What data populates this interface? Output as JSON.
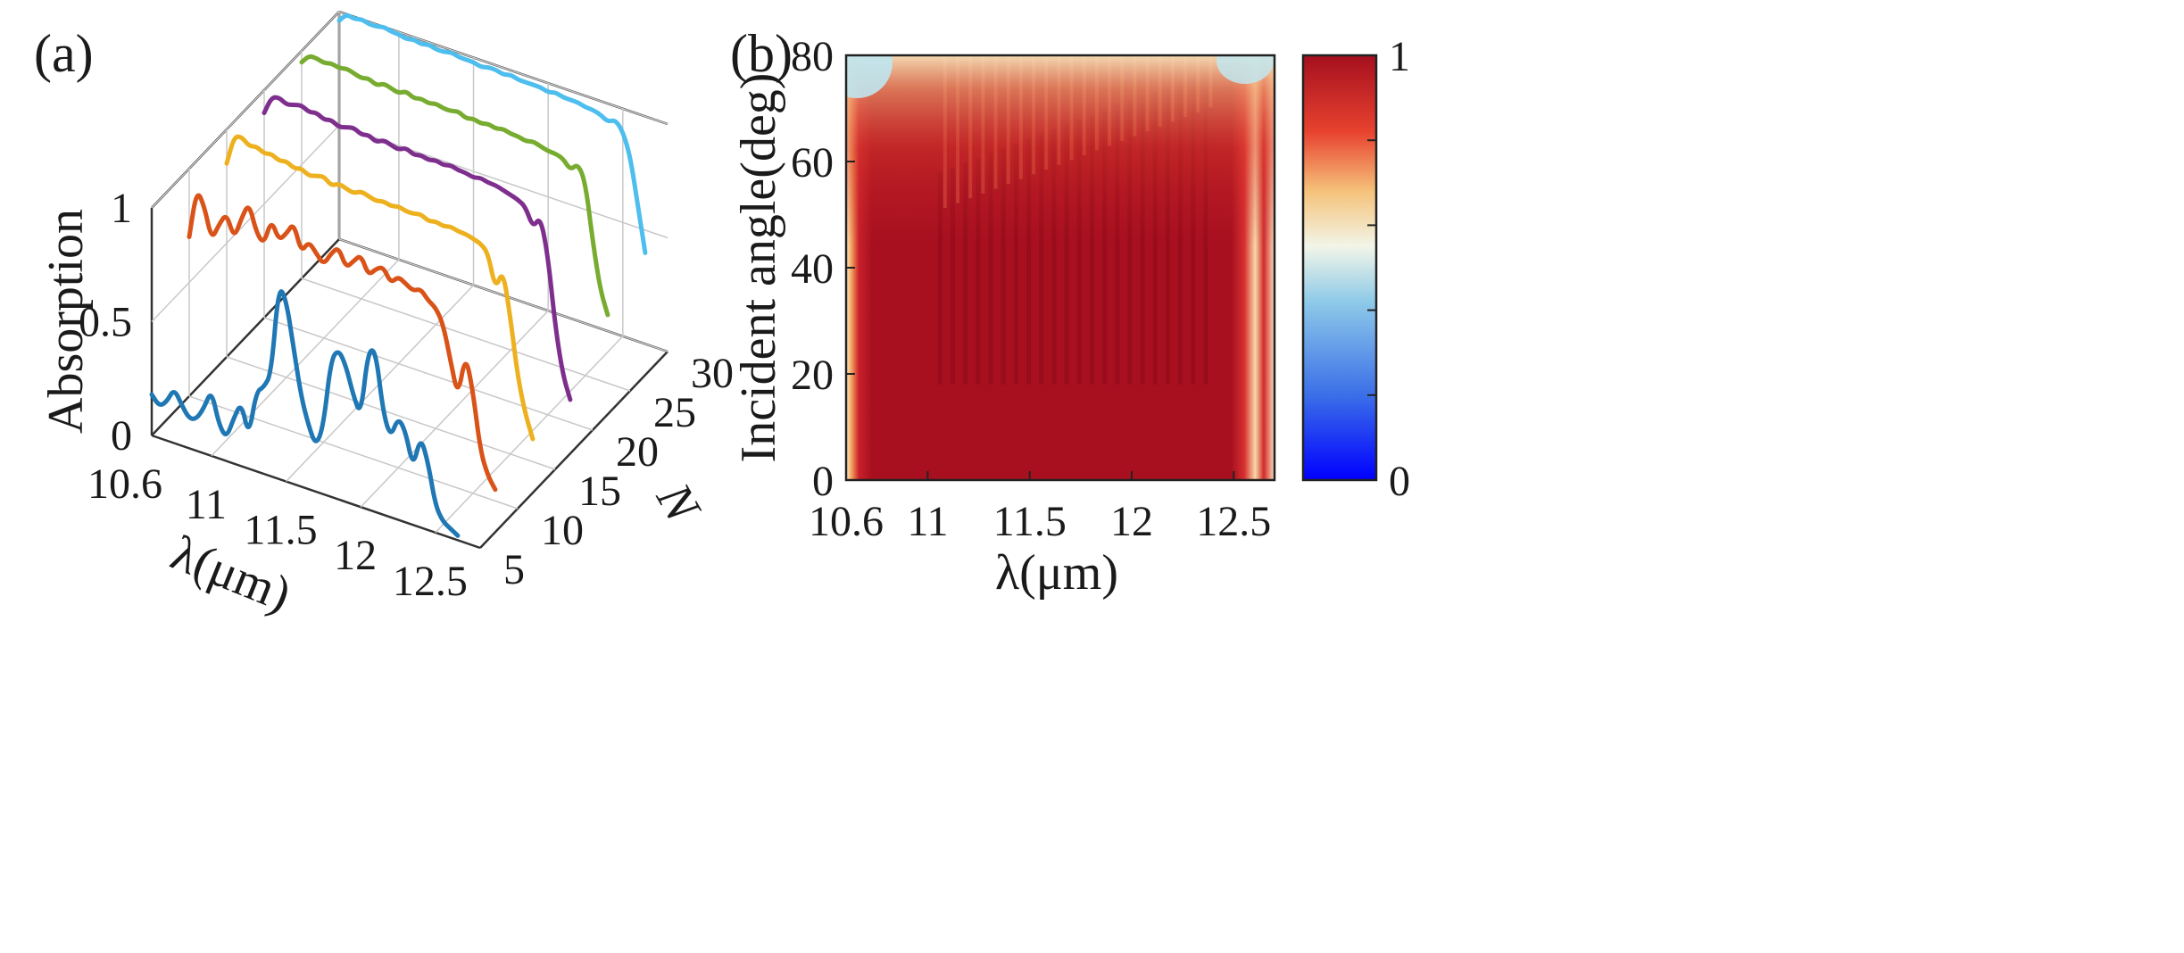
{
  "chart_data": [
    {
      "panel": "(a)",
      "type": "line",
      "projection": "3d-waterfall",
      "zlabel": "Absorption",
      "xlabel": "λ(μm)",
      "ylabel": "N",
      "xlim": [
        10.6,
        12.8
      ],
      "ylim": [
        5,
        30
      ],
      "zlim": [
        0,
        1
      ],
      "xticks": [
        "10.6",
        "11",
        "11.5",
        "12",
        "12.5"
      ],
      "yticks": [
        "5",
        "10",
        "15",
        "20",
        "25",
        "30"
      ],
      "zticks": [
        "0",
        "0.5",
        "1"
      ],
      "series": [
        {
          "name": "N=5",
          "N": 5,
          "color": "#1f77b4",
          "x": [
            10.6,
            10.65,
            10.7,
            10.75,
            10.8,
            10.85,
            10.9,
            10.95,
            11.0,
            11.05,
            11.1,
            11.15,
            11.2,
            11.25,
            11.3,
            11.35,
            11.4,
            11.45,
            11.5,
            11.55,
            11.6,
            11.65,
            11.7,
            11.75,
            11.8,
            11.85,
            11.9,
            11.95,
            12.0,
            12.05,
            12.1,
            12.15,
            12.2,
            12.25,
            12.3,
            12.35,
            12.4,
            12.45,
            12.5,
            12.55,
            12.6,
            12.65
          ],
          "y": [
            0.18,
            0.14,
            0.17,
            0.24,
            0.18,
            0.13,
            0.14,
            0.2,
            0.29,
            0.15,
            0.1,
            0.2,
            0.28,
            0.14,
            0.35,
            0.38,
            0.45,
            0.85,
            0.8,
            0.6,
            0.4,
            0.28,
            0.2,
            0.3,
            0.6,
            0.66,
            0.6,
            0.48,
            0.4,
            0.7,
            0.71,
            0.45,
            0.35,
            0.45,
            0.4,
            0.25,
            0.4,
            0.3,
            0.12,
            0.06,
            0.04,
            0.02
          ]
        },
        {
          "name": "N=10",
          "N": 10,
          "color": "#d95319",
          "x": [
            10.6,
            10.65,
            10.7,
            10.75,
            10.8,
            10.85,
            10.9,
            10.95,
            11.0,
            11.05,
            11.1,
            11.15,
            11.2,
            11.25,
            11.3,
            11.35,
            11.4,
            11.45,
            11.5,
            11.55,
            11.6,
            11.65,
            11.7,
            11.75,
            11.8,
            11.85,
            11.9,
            11.95,
            12.0,
            12.05,
            12.1,
            12.15,
            12.2,
            12.25,
            12.3,
            12.35,
            12.4,
            12.45,
            12.5,
            12.55,
            12.6,
            12.65
          ],
          "y": [
            0.7,
            0.92,
            0.86,
            0.72,
            0.8,
            0.86,
            0.76,
            0.86,
            0.94,
            0.82,
            0.78,
            0.9,
            0.82,
            0.86,
            0.92,
            0.8,
            0.86,
            0.82,
            0.78,
            0.84,
            0.88,
            0.8,
            0.84,
            0.88,
            0.8,
            0.84,
            0.86,
            0.8,
            0.84,
            0.82,
            0.8,
            0.82,
            0.78,
            0.76,
            0.7,
            0.55,
            0.4,
            0.6,
            0.45,
            0.2,
            0.1,
            0.05
          ]
        },
        {
          "name": "N=15",
          "N": 15,
          "color": "#edb120",
          "x": [
            10.6,
            10.65,
            10.7,
            10.75,
            10.8,
            10.85,
            10.9,
            10.95,
            11.0,
            11.05,
            11.1,
            11.15,
            11.2,
            11.25,
            11.3,
            11.35,
            11.4,
            11.45,
            11.5,
            11.55,
            11.6,
            11.65,
            11.7,
            11.75,
            11.8,
            11.85,
            11.9,
            11.95,
            12.0,
            12.05,
            12.1,
            12.15,
            12.2,
            12.25,
            12.3,
            12.35,
            12.4,
            12.45,
            12.5,
            12.55,
            12.6,
            12.65
          ],
          "y": [
            0.85,
            0.98,
            0.99,
            0.96,
            0.97,
            0.95,
            0.96,
            0.94,
            0.95,
            0.93,
            0.94,
            0.92,
            0.93,
            0.94,
            0.91,
            0.93,
            0.92,
            0.91,
            0.93,
            0.92,
            0.91,
            0.92,
            0.91,
            0.92,
            0.91,
            0.91,
            0.92,
            0.9,
            0.91,
            0.9,
            0.91,
            0.9,
            0.9,
            0.89,
            0.88,
            0.85,
            0.7,
            0.8,
            0.6,
            0.35,
            0.2,
            0.1
          ]
        },
        {
          "name": "N=20",
          "N": 20,
          "color": "#7e2f8e",
          "x": [
            10.6,
            10.65,
            10.7,
            10.75,
            10.8,
            10.85,
            10.9,
            10.95,
            11.0,
            11.05,
            11.1,
            11.15,
            11.2,
            11.25,
            11.3,
            11.35,
            11.4,
            11.45,
            11.5,
            11.55,
            11.6,
            11.65,
            11.7,
            11.75,
            11.8,
            11.85,
            11.9,
            11.95,
            12.0,
            12.05,
            12.1,
            12.15,
            12.2,
            12.25,
            12.3,
            12.35,
            12.4,
            12.45,
            12.5,
            12.55,
            12.6,
            12.65
          ],
          "y": [
            0.9,
            0.98,
            0.99,
            0.97,
            0.98,
            0.99,
            0.97,
            0.98,
            0.96,
            0.97,
            0.95,
            0.96,
            0.97,
            0.95,
            0.96,
            0.94,
            0.96,
            0.95,
            0.94,
            0.96,
            0.94,
            0.95,
            0.94,
            0.95,
            0.94,
            0.95,
            0.94,
            0.94,
            0.93,
            0.94,
            0.93,
            0.93,
            0.92,
            0.91,
            0.9,
            0.88,
            0.8,
            0.86,
            0.7,
            0.4,
            0.2,
            0.1
          ]
        },
        {
          "name": "N=25",
          "N": 25,
          "color": "#77ac30",
          "x": [
            10.6,
            10.65,
            10.7,
            10.75,
            10.8,
            10.85,
            10.9,
            10.95,
            11.0,
            11.05,
            11.1,
            11.15,
            11.2,
            11.25,
            11.3,
            11.35,
            11.4,
            11.45,
            11.5,
            11.55,
            11.6,
            11.65,
            11.7,
            11.75,
            11.8,
            11.85,
            11.9,
            11.95,
            12.0,
            12.05,
            12.1,
            12.15,
            12.2,
            12.25,
            12.3,
            12.35,
            12.4,
            12.45,
            12.5,
            12.55,
            12.6,
            12.65
          ],
          "y": [
            0.95,
            0.99,
            0.99,
            0.98,
            0.99,
            0.98,
            0.99,
            0.98,
            0.97,
            0.98,
            0.96,
            0.98,
            0.97,
            0.96,
            0.98,
            0.96,
            0.97,
            0.96,
            0.97,
            0.96,
            0.96,
            0.97,
            0.95,
            0.96,
            0.95,
            0.96,
            0.95,
            0.96,
            0.95,
            0.95,
            0.94,
            0.95,
            0.94,
            0.93,
            0.93,
            0.92,
            0.88,
            0.92,
            0.85,
            0.6,
            0.4,
            0.3
          ]
        },
        {
          "name": "N=30",
          "N": 30,
          "color": "#4dbeee",
          "x": [
            10.6,
            10.65,
            10.7,
            10.75,
            10.8,
            10.85,
            10.9,
            10.95,
            11.0,
            11.05,
            11.1,
            11.15,
            11.2,
            11.25,
            11.3,
            11.35,
            11.4,
            11.45,
            11.5,
            11.55,
            11.6,
            11.65,
            11.7,
            11.75,
            11.8,
            11.85,
            11.9,
            11.95,
            12.0,
            12.05,
            12.1,
            12.15,
            12.2,
            12.25,
            12.3,
            12.35,
            12.4,
            12.45,
            12.5,
            12.55,
            12.6,
            12.65
          ],
          "y": [
            0.96,
            1.0,
            0.99,
            1.0,
            0.99,
            0.99,
            1.0,
            0.99,
            0.99,
            0.98,
            0.99,
            0.98,
            0.99,
            0.98,
            0.98,
            0.99,
            0.98,
            0.98,
            0.98,
            0.97,
            0.98,
            0.98,
            0.97,
            0.98,
            0.97,
            0.97,
            0.97,
            0.97,
            0.96,
            0.97,
            0.96,
            0.96,
            0.96,
            0.95,
            0.95,
            0.94,
            0.92,
            0.94,
            0.9,
            0.8,
            0.6,
            0.4
          ]
        }
      ]
    },
    {
      "panel": "(b)",
      "type": "heatmap",
      "xlabel": "λ(μm)",
      "ylabel": "Incident angle(deg)",
      "xlim": [
        10.6,
        12.7
      ],
      "ylim": [
        0,
        80
      ],
      "clim": [
        0,
        1
      ],
      "xticks": [
        "10.6",
        "11",
        "11.5",
        "12",
        "12.5"
      ],
      "yticks": [
        "0",
        "20",
        "40",
        "60",
        "80"
      ],
      "colorbar_ticks": [
        "0",
        "1"
      ],
      "colormap": [
        "#0000ff",
        "#5aa0e6",
        "#e6f5fa",
        "#f5d08c",
        "#e8402e",
        "#a50f1e"
      ],
      "description_values": {
        "bulk_absorption": 0.98,
        "low_absorption_edges_nm": [
          10.62,
          12.68
        ]
      }
    }
  ]
}
